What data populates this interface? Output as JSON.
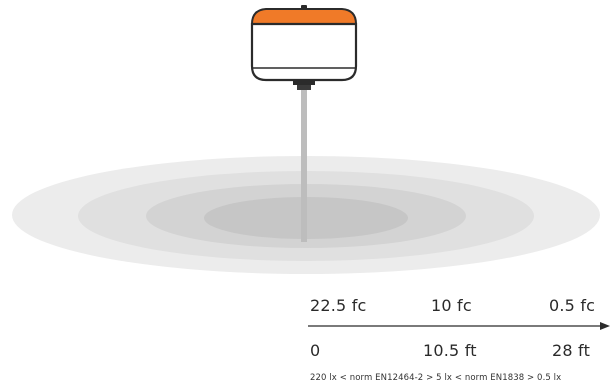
{
  "scale": {
    "top_labels": [
      "22.5 fc",
      "10 fc",
      "0.5 fc"
    ],
    "bottom_labels": [
      "0",
      "10.5 ft",
      "28 ft"
    ],
    "norm_note": "220 lx  < norm EN12464-2 > 5 lx  < norm EN1838 > 0.5 lx"
  },
  "colors": {
    "lamp_cap": "#f07a28",
    "lamp_body": "#ffffff",
    "outline": "#2b2b2b",
    "pole": "#bdbdbd",
    "light_ring_1": "#ececec",
    "light_ring_2": "#e0e0e0",
    "light_ring_3": "#d3d3d3",
    "light_ring_4": "#c6c6c6"
  },
  "icons": {
    "lamp": "lamp-icon",
    "arrow": "arrow-right-icon"
  }
}
